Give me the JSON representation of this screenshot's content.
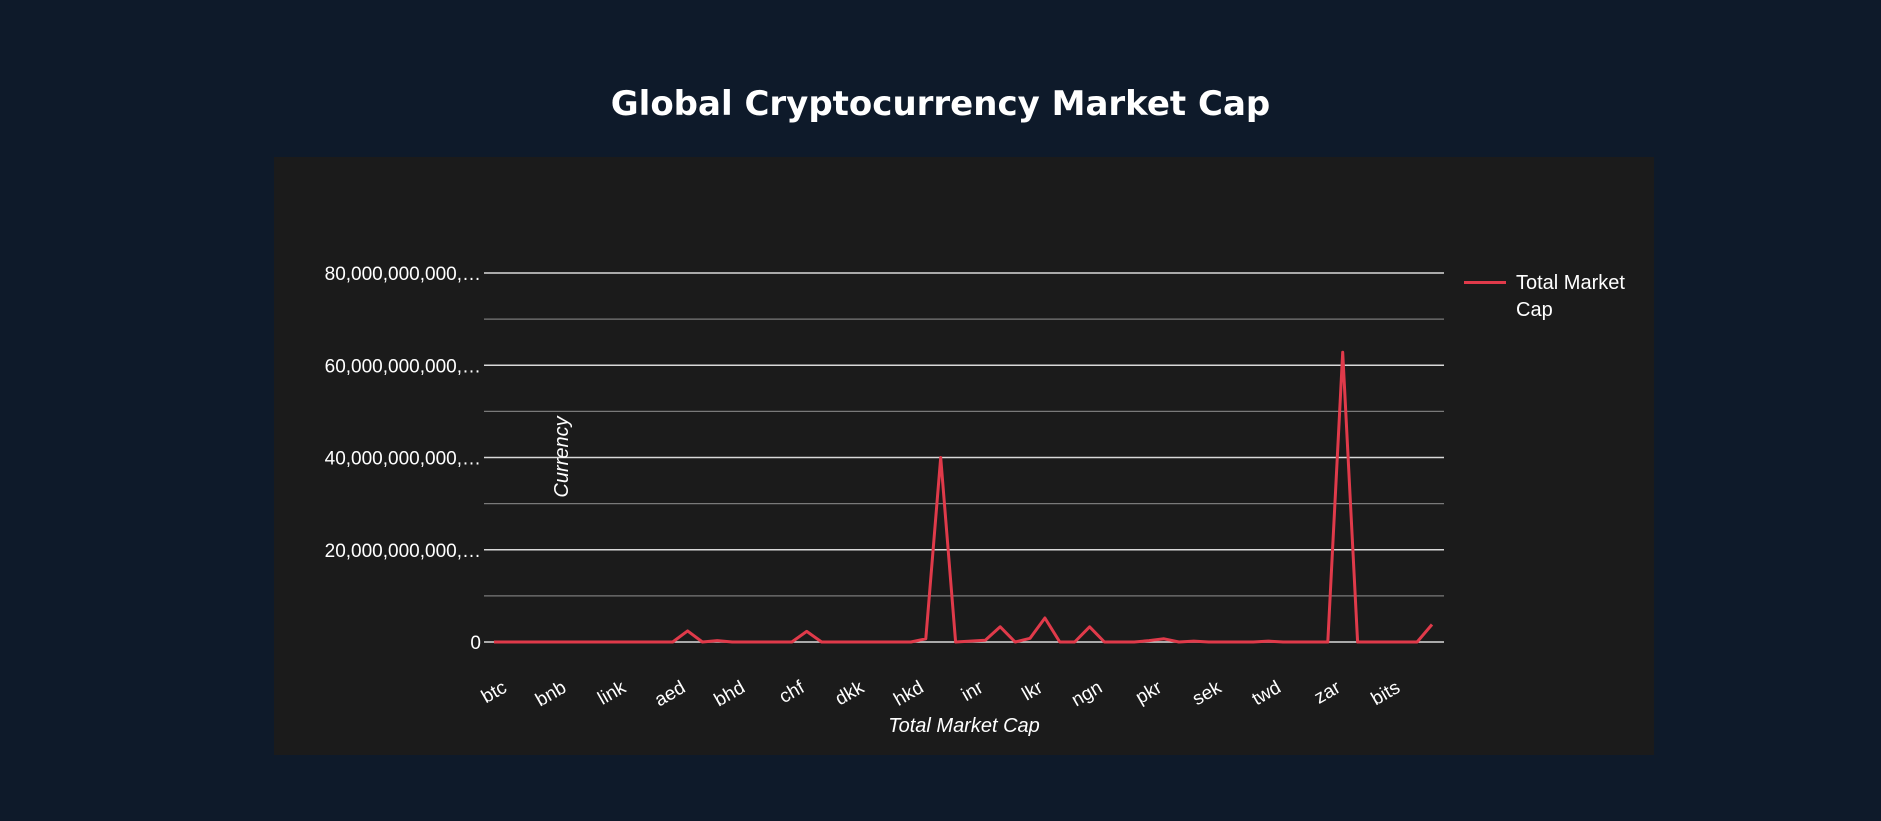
{
  "page": {
    "title": "Global Cryptocurrency Market Cap"
  },
  "colors": {
    "background": "#0e1a2a",
    "panel": "#1b1b1b",
    "series": "#e03a4a",
    "grid_major": "#d9d9d9",
    "grid_minor": "#7a7a7a",
    "text": "#ffffff"
  },
  "chart_data": {
    "type": "line",
    "title": "Global Cryptocurrency Market Cap",
    "xlabel": "Total Market Cap",
    "ylabel": "Currency",
    "ylim": [
      0,
      80000000000
    ],
    "y_ticks": [
      {
        "value": 0,
        "label": "0"
      },
      {
        "value": 20000000000,
        "label": "20,000,000,000,…"
      },
      {
        "value": 40000000000,
        "label": "40,000,000,000,…"
      },
      {
        "value": 60000000000,
        "label": "60,000,000,000,…"
      },
      {
        "value": 80000000000,
        "label": "80,000,000,000,…"
      }
    ],
    "x_tick_labels": [
      "btc",
      "bnb",
      "link",
      "aed",
      "bhd",
      "chf",
      "dkk",
      "hkd",
      "inr",
      "lkr",
      "ngn",
      "pkr",
      "sek",
      "twd",
      "zar",
      "bits"
    ],
    "x_tick_every": 4,
    "grid": true,
    "legend_position": "top-right",
    "series": [
      {
        "name": "Total Market Cap",
        "color": "#e03a4a",
        "values": [
          0,
          0,
          0,
          0,
          0,
          0,
          0,
          0,
          0,
          0,
          0,
          0,
          0,
          2400000000,
          0,
          300000000,
          0,
          0,
          0,
          0,
          0,
          2300000000,
          0,
          0,
          0,
          0,
          0,
          0,
          0,
          700000000,
          40000000000,
          0,
          200000000,
          400000000,
          3300000000,
          0,
          800000000,
          5200000000,
          0,
          0,
          3300000000,
          0,
          0,
          0,
          300000000,
          700000000,
          0,
          200000000,
          0,
          0,
          0,
          0,
          200000000,
          0,
          0,
          0,
          0,
          62800000000,
          0,
          0,
          0,
          0,
          0,
          3800000000
        ]
      }
    ]
  }
}
